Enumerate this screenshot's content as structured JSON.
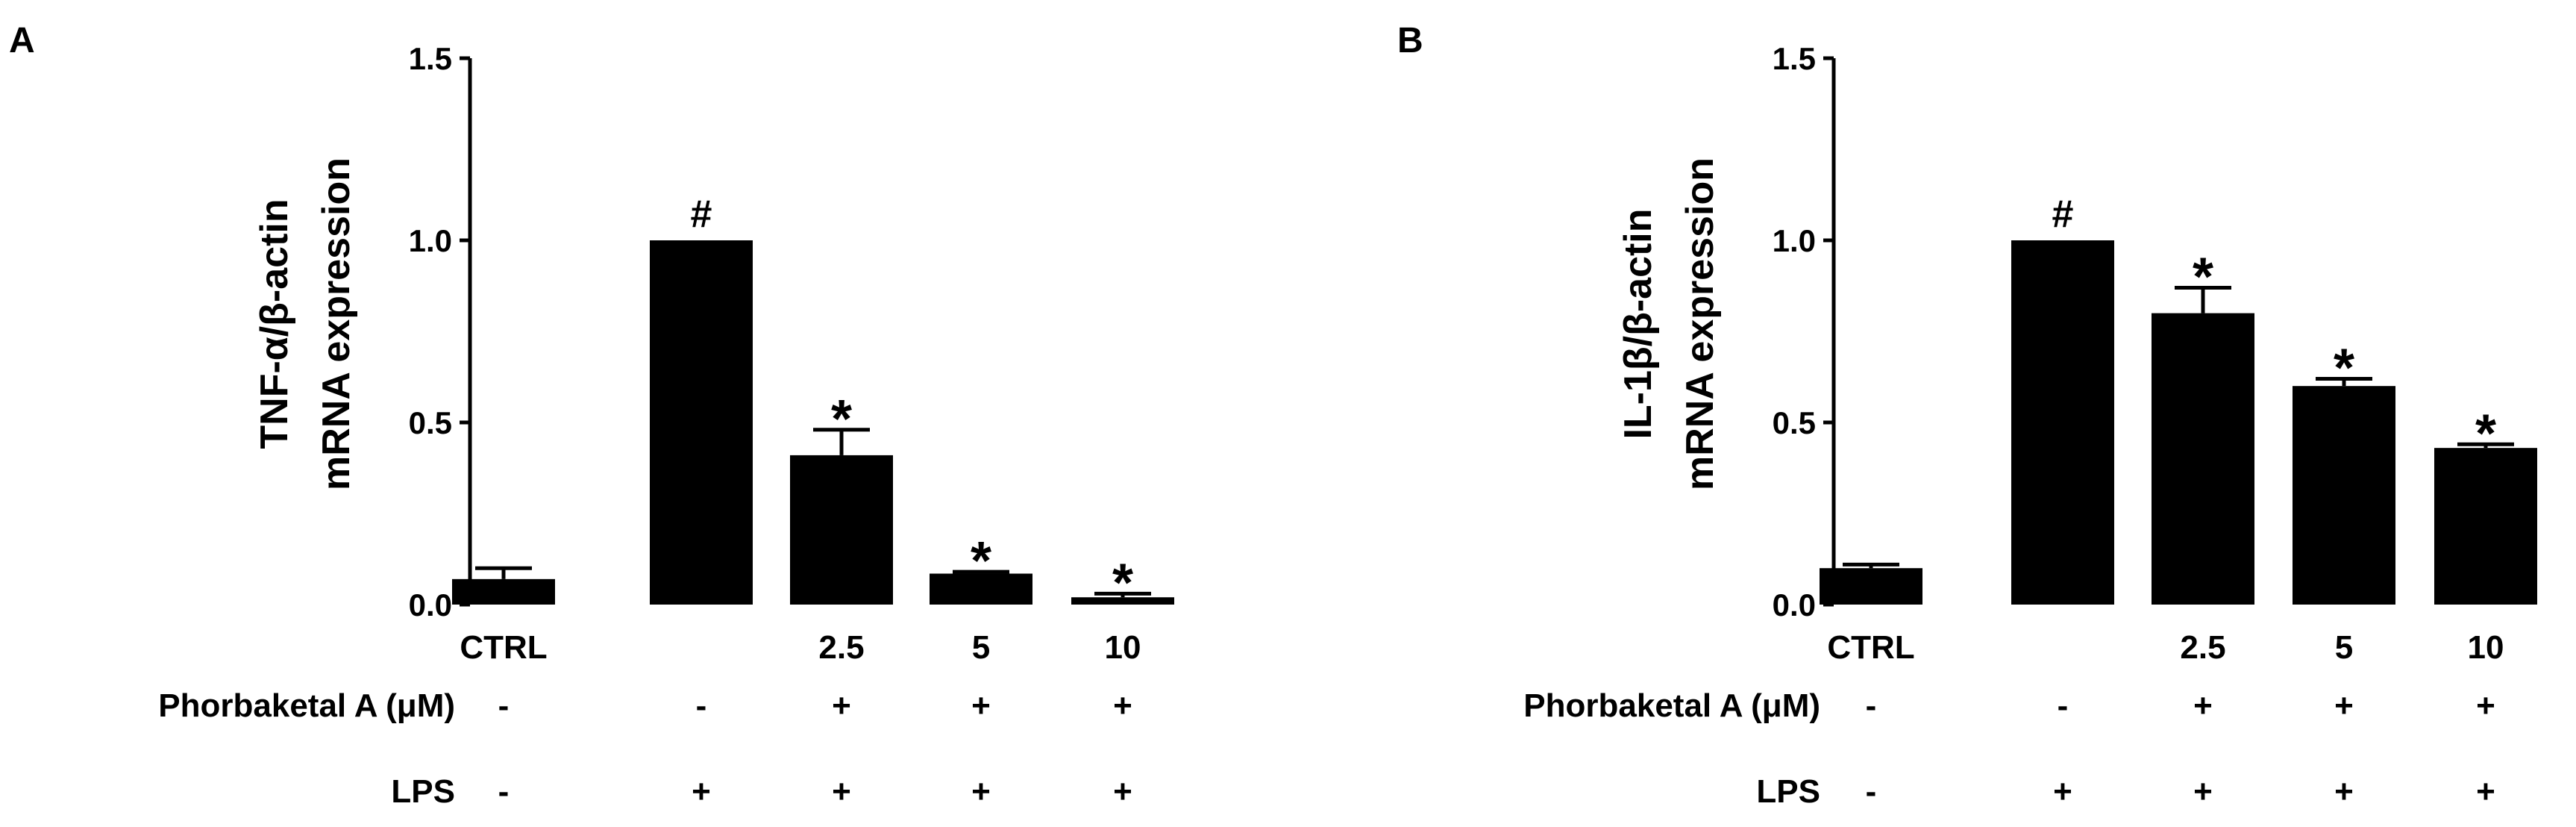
{
  "chart_data": [
    {
      "type": "bar",
      "panel_label": "A",
      "ylabel_lines": [
        "TNF-α/β-actin",
        "mRNA expression"
      ],
      "ylim": [
        0,
        1.5
      ],
      "yticks": [
        "0.0",
        "0.5",
        "1.0",
        "1.5"
      ],
      "categories": [
        "CTRL",
        "",
        "2.5",
        "5",
        "10"
      ],
      "values": [
        0.07,
        1.0,
        0.41,
        0.085,
        0.02
      ],
      "errors": [
        0.03,
        0.0,
        0.07,
        0.005,
        0.01
      ],
      "annotations": [
        "",
        "#",
        "*",
        "*",
        "*"
      ],
      "bar_color": "#000000",
      "rows": [
        {
          "label": "Phorbaketal A (μM)",
          "values": [
            "-",
            "-",
            "+",
            "+",
            "+"
          ]
        },
        {
          "label": "LPS",
          "values": [
            "-",
            "+",
            "+",
            "+",
            "+"
          ]
        }
      ]
    },
    {
      "type": "bar",
      "panel_label": "B",
      "ylabel_lines": [
        "IL-1β/β-actin",
        "mRNA expression"
      ],
      "ylim": [
        0,
        1.5
      ],
      "yticks": [
        "0.0",
        "0.5",
        "1.0",
        "1.5"
      ],
      "categories": [
        "CTRL",
        "",
        "2.5",
        "5",
        "10"
      ],
      "values": [
        0.1,
        1.0,
        0.8,
        0.6,
        0.43
      ],
      "errors": [
        0.01,
        0.0,
        0.07,
        0.02,
        0.01
      ],
      "annotations": [
        "",
        "#",
        "*",
        "*",
        "*"
      ],
      "bar_color": "#000000",
      "rows": [
        {
          "label": "Phorbaketal A (μM)",
          "values": [
            "-",
            "-",
            "+",
            "+",
            "+"
          ]
        },
        {
          "label": "LPS",
          "values": [
            "-",
            "+",
            "+",
            "+",
            "+"
          ]
        }
      ]
    }
  ]
}
